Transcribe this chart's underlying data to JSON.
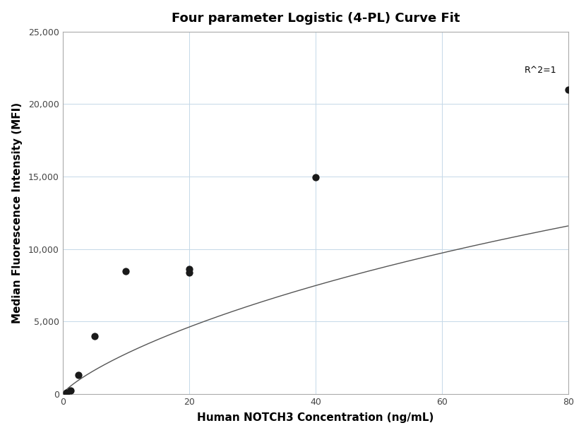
{
  "title": "Four parameter Logistic (4-PL) Curve Fit",
  "xlabel": "Human NOTCH3 Concentration (ng/mL)",
  "ylabel": "Median Fluorescence Intensity (MFI)",
  "scatter_x": [
    0.625,
    1.25,
    2.5,
    5.0,
    10.0,
    20.0,
    20.0,
    40.0,
    80.0
  ],
  "scatter_y": [
    100,
    250,
    1300,
    4000,
    8500,
    8400,
    8600,
    14950,
    21000
  ],
  "xlim": [
    0,
    80
  ],
  "ylim": [
    0,
    25000
  ],
  "yticks": [
    0,
    5000,
    10000,
    15000,
    20000,
    25000
  ],
  "xticks": [
    0,
    20,
    40,
    60,
    80
  ],
  "r_squared_text": "R^2=1",
  "marker_color": "#1a1a1a",
  "line_color": "#555555",
  "grid_color": "#c5d8e8",
  "background_color": "#ffffff",
  "title_fontsize": 13,
  "axis_label_fontsize": 11,
  "annotation_fontsize": 9,
  "four_pl_A": 0,
  "four_pl_B": 0.72,
  "four_pl_C": 200,
  "four_pl_D": 35000
}
